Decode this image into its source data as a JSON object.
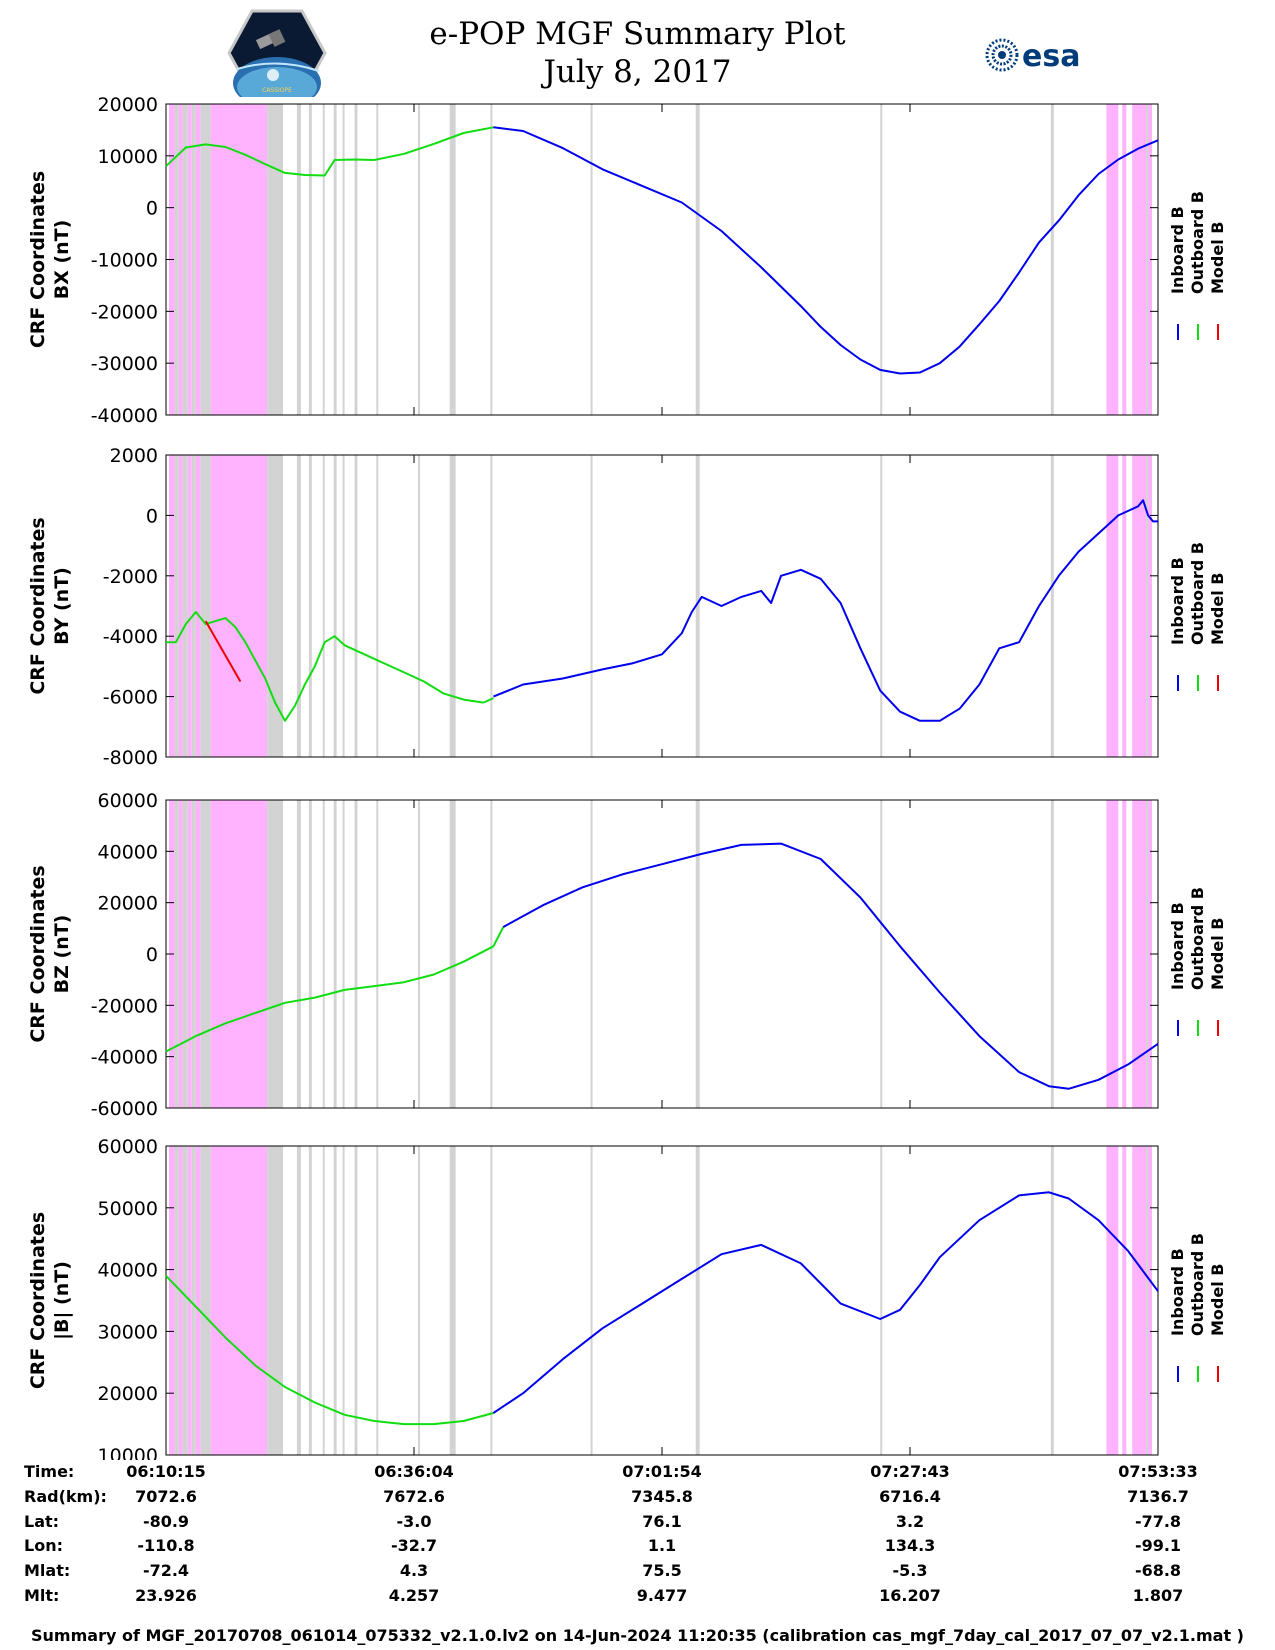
{
  "header": {
    "title_line1": "e-POP MGF Summary Plot",
    "title_line2": "July 8, 2017",
    "logo_left_text": "CASSIOPE",
    "logo_right_text": "esa"
  },
  "colors": {
    "inboard": "#0000ee",
    "outboard": "#11dd11",
    "model": "#ee0000",
    "magenta_band": "#ffb3ff",
    "gray_band": "#d3d3d3"
  },
  "chart_data": [
    {
      "type": "line",
      "ylabel_line1": "CRF Coordinates",
      "ylabel_line2": "BX (nT)",
      "yticks": [
        20000,
        10000,
        0,
        -10000,
        -20000,
        -30000,
        -40000
      ],
      "ylim": [
        -40000,
        20000
      ],
      "legend": [
        "Inboard B",
        "Outboard B",
        "Model B"
      ],
      "series": [
        {
          "name": "Outboard B",
          "x": [
            0,
            2,
            4,
            6,
            8,
            10,
            12,
            14,
            16,
            17,
            19,
            21
          ],
          "y": [
            8000,
            11600,
            12200,
            11700,
            10200,
            8400,
            6700,
            6300,
            6200,
            9200,
            9300,
            9200
          ]
        },
        {
          "name": "Outboard B",
          "x": [
            21,
            24,
            27,
            30,
            33
          ],
          "y": [
            9200,
            10400,
            12300,
            14400,
            15500
          ]
        },
        {
          "name": "Inboard B",
          "x": [
            33,
            36,
            40,
            44,
            48,
            52,
            56,
            60,
            64,
            66,
            68,
            70,
            72,
            74,
            76,
            78,
            80,
            82,
            84,
            86,
            88,
            90,
            92,
            94,
            96,
            98,
            100
          ],
          "y": [
            15500,
            14800,
            11500,
            7400,
            4200,
            1000,
            -4500,
            -11500,
            -19000,
            -23000,
            -26500,
            -29300,
            -31300,
            -32000,
            -31800,
            -30000,
            -26800,
            -22500,
            -18000,
            -12500,
            -6700,
            -2500,
            2400,
            6500,
            9300,
            11400,
            13000
          ]
        }
      ]
    },
    {
      "type": "line",
      "ylabel_line1": "CRF Coordinates",
      "ylabel_line2": "BY (nT)",
      "yticks": [
        2000,
        0,
        -2000,
        -4000,
        -6000,
        -8000
      ],
      "ylim": [
        -8000,
        2000
      ],
      "legend": [
        "Inboard B",
        "Outboard B",
        "Model B"
      ],
      "series": [
        {
          "name": "Outboard B",
          "x": [
            0,
            1,
            2,
            3,
            4,
            5,
            6,
            7,
            8,
            9,
            10,
            11,
            12,
            13,
            14,
            15,
            16,
            17,
            18,
            20,
            22,
            24,
            26,
            28,
            30,
            32
          ],
          "y": [
            -4200,
            -4200,
            -3600,
            -3200,
            -3600,
            -3500,
            -3400,
            -3700,
            -4200,
            -4800,
            -5400,
            -6200,
            -6800,
            -6300,
            -5600,
            -5000,
            -4200,
            -4000,
            -4300,
            -4600,
            -4900,
            -5200,
            -5500,
            -5900,
            -6100,
            -6200
          ]
        },
        {
          "name": "Outboard B",
          "x": [
            32,
            33
          ],
          "y": [
            -6200,
            -6050
          ]
        },
        {
          "name": "Inboard B",
          "x": [
            33,
            36,
            40,
            44,
            47,
            50,
            52,
            53,
            54,
            56,
            58,
            60,
            61,
            62,
            63,
            64,
            66,
            68,
            70,
            72,
            74,
            76,
            78,
            79,
            80,
            82,
            84,
            86,
            88,
            90,
            92,
            94,
            96,
            98,
            98.5,
            99,
            99.5,
            100
          ],
          "y": [
            -6000,
            -5600,
            -5400,
            -5100,
            -4900,
            -4600,
            -3900,
            -3200,
            -2700,
            -3000,
            -2700,
            -2500,
            -2900,
            -2000,
            -1900,
            -1800,
            -2100,
            -2900,
            -4400,
            -5800,
            -6500,
            -6800,
            -6800,
            -6600,
            -6400,
            -5600,
            -4400,
            -4200,
            -3000,
            -2000,
            -1200,
            -600,
            0,
            300,
            500,
            0,
            -200,
            -200
          ]
        },
        {
          "name": "Model B",
          "x": [
            4,
            7.5
          ],
          "y": [
            -3500,
            -5500
          ]
        }
      ]
    },
    {
      "type": "line",
      "ylabel_line1": "CRF Coordinates",
      "ylabel_line2": "BZ (nT)",
      "yticks": [
        60000,
        40000,
        20000,
        0,
        -20000,
        -40000,
        -60000
      ],
      "ylim": [
        -60000,
        60000
      ],
      "legend": [
        "Inboard B",
        "Outboard B",
        "Model B"
      ],
      "series": [
        {
          "name": "Outboard B",
          "x": [
            0,
            3,
            6,
            9,
            12,
            15,
            18,
            21,
            24,
            27,
            30,
            33
          ],
          "y": [
            -38000,
            -32000,
            -27000,
            -23000,
            -19000,
            -17000,
            -14000,
            -12500,
            -11000,
            -8000,
            -3000,
            3000
          ]
        },
        {
          "name": "Outboard B",
          "x": [
            33,
            34
          ],
          "y": [
            3000,
            10500
          ]
        },
        {
          "name": "Inboard B",
          "x": [
            34,
            38,
            42,
            46,
            50,
            54,
            58,
            62,
            66,
            70,
            74,
            78,
            82,
            86,
            89,
            91,
            94,
            97,
            100
          ],
          "y": [
            10500,
            19000,
            26000,
            31000,
            35000,
            39000,
            42500,
            43000,
            37000,
            22000,
            3000,
            -15000,
            -32000,
            -46000,
            -51500,
            -52500,
            -49000,
            -43000,
            -35000
          ]
        }
      ]
    },
    {
      "type": "line",
      "ylabel_line1": "CRF Coordinates",
      "ylabel_line2": "|B| (nT)",
      "yticks": [
        60000,
        50000,
        40000,
        30000,
        20000,
        10000
      ],
      "ylim": [
        10000,
        60000
      ],
      "legend": [
        "Inboard B",
        "Outboard B",
        "Model B"
      ],
      "series": [
        {
          "name": "Outboard B",
          "x": [
            0,
            3,
            6,
            9,
            12,
            15,
            18,
            21,
            24,
            27,
            30,
            33
          ],
          "y": [
            39000,
            34000,
            29000,
            24500,
            21000,
            18500,
            16500,
            15500,
            15000,
            15000,
            15500,
            16800
          ]
        },
        {
          "name": "Outboard B",
          "x": [
            33,
            33
          ],
          "y": [
            16800,
            16800
          ]
        },
        {
          "name": "Inboard B",
          "x": [
            33,
            36,
            40,
            44,
            48,
            52,
            56,
            60,
            64,
            68,
            72,
            74,
            76,
            78,
            82,
            86,
            89,
            91,
            94,
            97,
            100
          ],
          "y": [
            16800,
            20000,
            25500,
            30500,
            34500,
            38500,
            42500,
            44000,
            41000,
            34500,
            32000,
            33500,
            37500,
            42000,
            48000,
            52000,
            52500,
            51500,
            48000,
            43000,
            36500
          ]
        }
      ]
    }
  ],
  "bands": {
    "magenta": [
      [
        0.3,
        0.9
      ],
      [
        1.3,
        1.7
      ],
      [
        2.2,
        2.6
      ],
      [
        3.0,
        3.5
      ],
      [
        4.5,
        10.2
      ],
      [
        94.8,
        96.0
      ],
      [
        96.4,
        96.8
      ],
      [
        97.4,
        98.8
      ],
      [
        99.0,
        99.4
      ]
    ],
    "gray": [
      [
        0.9,
        1.3
      ],
      [
        1.7,
        2.2
      ],
      [
        2.6,
        3.0
      ],
      [
        3.5,
        4.5
      ],
      [
        10.2,
        11.8
      ],
      [
        13.2,
        13.6
      ],
      [
        14.4,
        14.7
      ],
      [
        15.8,
        16.0
      ],
      [
        16.9,
        17.2
      ],
      [
        17.8,
        18.0
      ],
      [
        19.0,
        19.3
      ],
      [
        21.2,
        21.4
      ],
      [
        25.4,
        25.6
      ],
      [
        28.6,
        29.2
      ],
      [
        32.7,
        32.9
      ],
      [
        42.8,
        43.0
      ],
      [
        53.4,
        53.8
      ],
      [
        72.0,
        72.2
      ],
      [
        89.2,
        89.5
      ],
      [
        98.8,
        99.0
      ]
    ]
  },
  "info_table": {
    "labels": [
      "Time:",
      "Rad(km):",
      "Lat:",
      "Lon:",
      "Mlat:",
      "Mlt:"
    ],
    "columns": [
      [
        "06:10:15",
        "7072.6",
        "-80.9",
        "-110.8",
        "-72.4",
        "23.926"
      ],
      [
        "06:36:04",
        "7672.6",
        "-3.0",
        "-32.7",
        "4.3",
        "4.257"
      ],
      [
        "07:01:54",
        "7345.8",
        "76.1",
        "1.1",
        "75.5",
        "9.477"
      ],
      [
        "07:27:43",
        "6716.4",
        "3.2",
        "134.3",
        "-5.3",
        "16.207"
      ],
      [
        "07:53:33",
        "7136.7",
        "-77.8",
        "-99.1",
        "-68.8",
        "1.807"
      ]
    ]
  },
  "footer": "Summary of MGF_20170708_061014_075332_v2.1.0.lv2 on 14-Jun-2024 11:20:35 (calibration cas_mgf_7day_cal_2017_07_07_v2.1.mat )"
}
